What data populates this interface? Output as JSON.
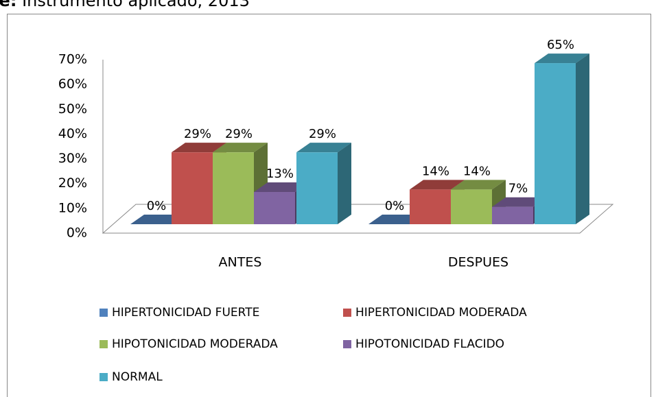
{
  "source_label": "nte:",
  "source": "Instrumento aplicado, 2013",
  "chart_data": {
    "type": "bar3d",
    "categories": [
      "ANTES",
      "DESPUES"
    ],
    "series": [
      {
        "name": "HIPERTONICIDAD FUERTE",
        "color": "#4F81BD",
        "values": [
          0,
          0
        ],
        "value_labels": [
          "0%",
          "0%"
        ]
      },
      {
        "name": "HIPERTONICIDAD MODERADA",
        "color": "#C0504D",
        "values": [
          29,
          14
        ],
        "value_labels": [
          "29%",
          "14%"
        ]
      },
      {
        "name": "HIPOTONICIDAD MODERADA",
        "color": "#9BBB59",
        "values": [
          29,
          14
        ],
        "value_labels": [
          "29%",
          "14%"
        ]
      },
      {
        "name": "HIPOTONICIDAD FLACIDO",
        "color": "#8064A2",
        "values": [
          13,
          7
        ],
        "value_labels": [
          "13%",
          "7%"
        ]
      },
      {
        "name": "NORMAL",
        "color": "#4BACC6",
        "values": [
          29,
          65
        ],
        "value_labels": [
          "29%",
          "65%"
        ]
      }
    ],
    "ylim": [
      0,
      70
    ],
    "yticks": [
      {
        "value": 0,
        "label": "0%"
      },
      {
        "value": 10,
        "label": "10%"
      },
      {
        "value": 20,
        "label": "20%"
      },
      {
        "value": 30,
        "label": "30%"
      },
      {
        "value": 40,
        "label": "40%"
      },
      {
        "value": 50,
        "label": "50%"
      },
      {
        "value": 60,
        "label": "60%"
      },
      {
        "value": 70,
        "label": "70%"
      }
    ],
    "legend": "bottom"
  }
}
